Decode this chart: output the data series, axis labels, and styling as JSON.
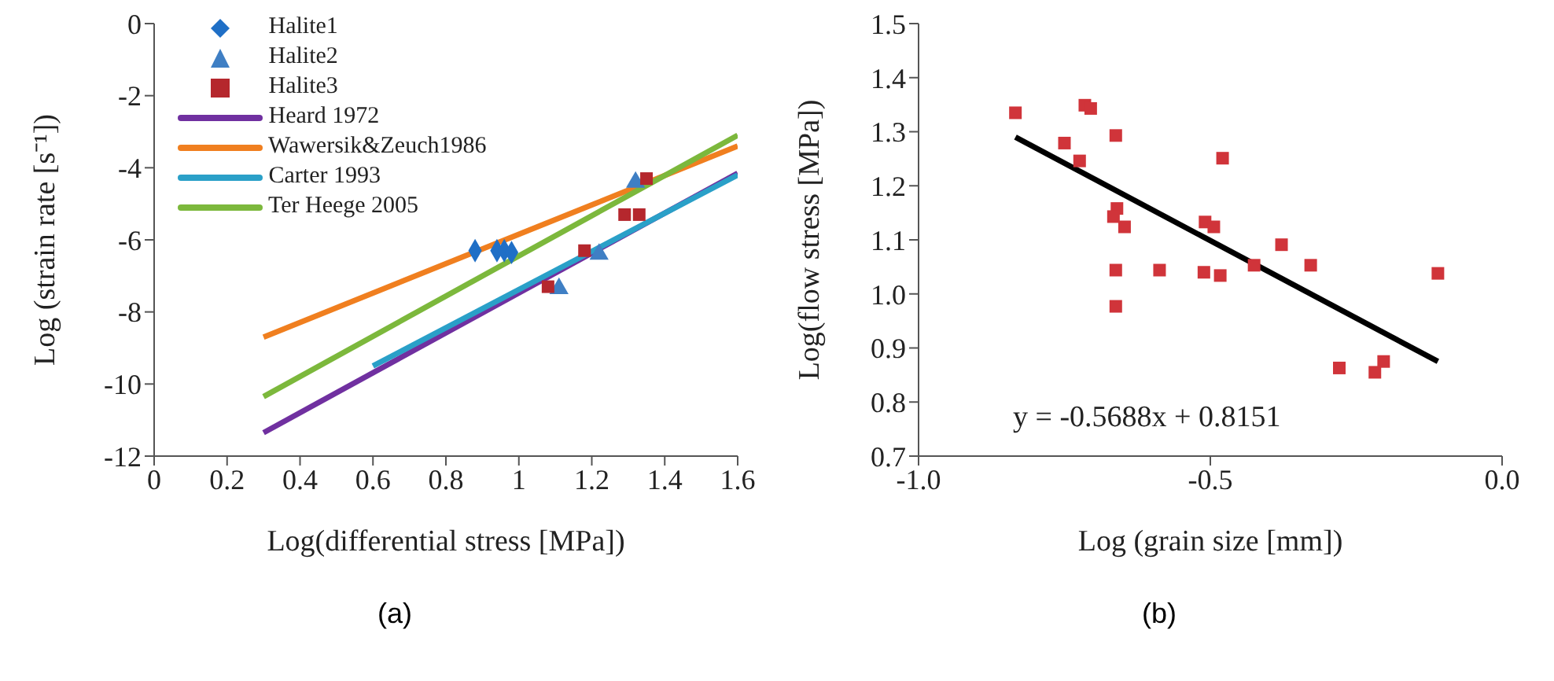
{
  "chart_data": [
    {
      "type": "scatter",
      "title": "(a)",
      "xlabel": "Log(differential stress [MPa])",
      "ylabel": "Log (strain rate [s⁻¹])",
      "xlim": [
        0,
        1.6
      ],
      "xticks": [
        0,
        0.2,
        0.4,
        0.6,
        0.8,
        1,
        1.2,
        1.4,
        1.6
      ],
      "ylim": [
        -12,
        0
      ],
      "yticks": [
        -12,
        -10,
        -8,
        -6,
        -4,
        -2,
        0
      ],
      "grid": false,
      "legend": "top left",
      "series": [
        {
          "name": "Halite1",
          "type": "scatter",
          "marker": "diamond",
          "color": "#1f6fc6",
          "x": [
            0.88,
            0.94,
            0.96,
            0.98
          ],
          "values": [
            -6.3,
            -6.3,
            -6.3,
            -6.35
          ]
        },
        {
          "name": "Halite2",
          "type": "scatter",
          "marker": "triangle",
          "color": "#3f7fc4",
          "x": [
            1.11,
            1.22,
            1.32
          ],
          "values": [
            -7.35,
            -6.4,
            -4.4
          ]
        },
        {
          "name": "Halite3",
          "type": "scatter",
          "marker": "square",
          "color": "#b5272d",
          "x": [
            1.08,
            1.18,
            1.29,
            1.33,
            1.35
          ],
          "values": [
            -7.3,
            -6.3,
            -5.3,
            -5.3,
            -4.3
          ]
        },
        {
          "name": "Heard 1972",
          "type": "line",
          "marker": "none",
          "color": "#7030a0",
          "x": [
            0.3,
            1.6
          ],
          "values": [
            -11.35,
            -4.15
          ]
        },
        {
          "name": "Wawersik&Zeuch1986",
          "type": "line",
          "marker": "none",
          "color": "#f07f1f",
          "x": [
            0.3,
            1.6
          ],
          "values": [
            -8.7,
            -3.4
          ]
        },
        {
          "name": "Carter 1993",
          "type": "line",
          "marker": "none",
          "color": "#2aa0c8",
          "x": [
            0.6,
            1.6
          ],
          "values": [
            -9.5,
            -4.2
          ]
        },
        {
          "name": "Ter Heege 2005",
          "type": "line",
          "marker": "none",
          "color": "#7cb83c",
          "x": [
            0.3,
            1.6
          ],
          "values": [
            -10.35,
            -3.1
          ]
        }
      ]
    },
    {
      "type": "scatter",
      "title": "(b)",
      "xlabel": "Log (grain size [mm])",
      "ylabel": "Log(flow stress [MPa])",
      "xlim": [
        -1,
        0
      ],
      "xticks": [
        {
          "value": -1,
          "label": "-1.0"
        },
        -0.5,
        {
          "value": 0,
          "label": "0.0"
        }
      ],
      "ylim": [
        0.7,
        1.5
      ],
      "yticks": [
        0.7,
        0.8,
        0.9,
        {
          "value": 1,
          "label": "1.0"
        },
        1.1,
        1.2,
        1.3,
        1.4,
        1.5
      ],
      "grid": false,
      "annotations": [
        "y = -0.5688x + 0.8151"
      ],
      "series": [
        {
          "type": "scatter",
          "marker": "square",
          "color": "#d0343a",
          "x": [
            -0.834,
            -0.715,
            -0.705,
            -0.75,
            -0.724,
            -0.662,
            -0.479,
            -0.66,
            -0.666,
            -0.647,
            -0.509,
            -0.494,
            -0.662,
            -0.662,
            -0.587,
            -0.511,
            -0.483,
            -0.425,
            -0.378,
            -0.328,
            -0.279,
            -0.218,
            -0.203,
            -0.11
          ],
          "values": [
            1.335,
            1.349,
            1.343,
            1.279,
            1.246,
            1.293,
            1.251,
            1.158,
            1.143,
            1.124,
            1.133,
            1.124,
            1.044,
            0.977,
            1.044,
            1.04,
            1.034,
            1.053,
            1.091,
            1.053,
            0.863,
            0.855,
            0.875,
            1.038
          ]
        },
        {
          "type": "line",
          "marker": "none",
          "color": "#000000",
          "x": [
            -0.834,
            -0.11
          ],
          "values": [
            1.29,
            0.875
          ]
        }
      ]
    }
  ]
}
